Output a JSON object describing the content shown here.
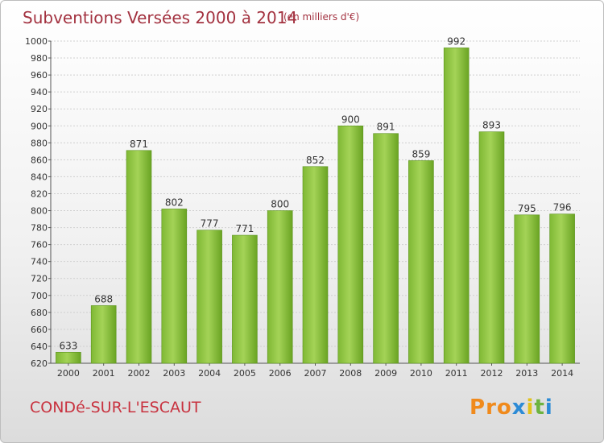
{
  "header": {
    "title": "Subventions Versées 2000 à 2014",
    "unit": "(en milliers d'€)"
  },
  "footer": {
    "commune": "CONDé-SUR-L'ESCAUT",
    "logo": "Proxiti"
  },
  "colors": {
    "bar_light": "#9ccc4e",
    "bar_dark": "#6aa423",
    "title": "#a33240",
    "grid": "#d0d0d0"
  },
  "chart_data": {
    "type": "bar",
    "title": "Subventions Versées 2000 à 2014",
    "subtitle": "(en milliers d'€)",
    "xlabel": "",
    "ylabel": "",
    "categories": [
      "2000",
      "2001",
      "2002",
      "2003",
      "2004",
      "2005",
      "2006",
      "2007",
      "2008",
      "2009",
      "2010",
      "2011",
      "2012",
      "2013",
      "2014"
    ],
    "values": [
      633,
      688,
      871,
      802,
      777,
      771,
      800,
      852,
      900,
      891,
      859,
      992,
      893,
      795,
      796
    ],
    "ylim": [
      620,
      1000
    ],
    "yticks": [
      620,
      640,
      660,
      680,
      700,
      720,
      740,
      760,
      780,
      800,
      820,
      840,
      860,
      880,
      900,
      920,
      940,
      960,
      980,
      1000
    ],
    "grid": true,
    "data_labels": true
  }
}
